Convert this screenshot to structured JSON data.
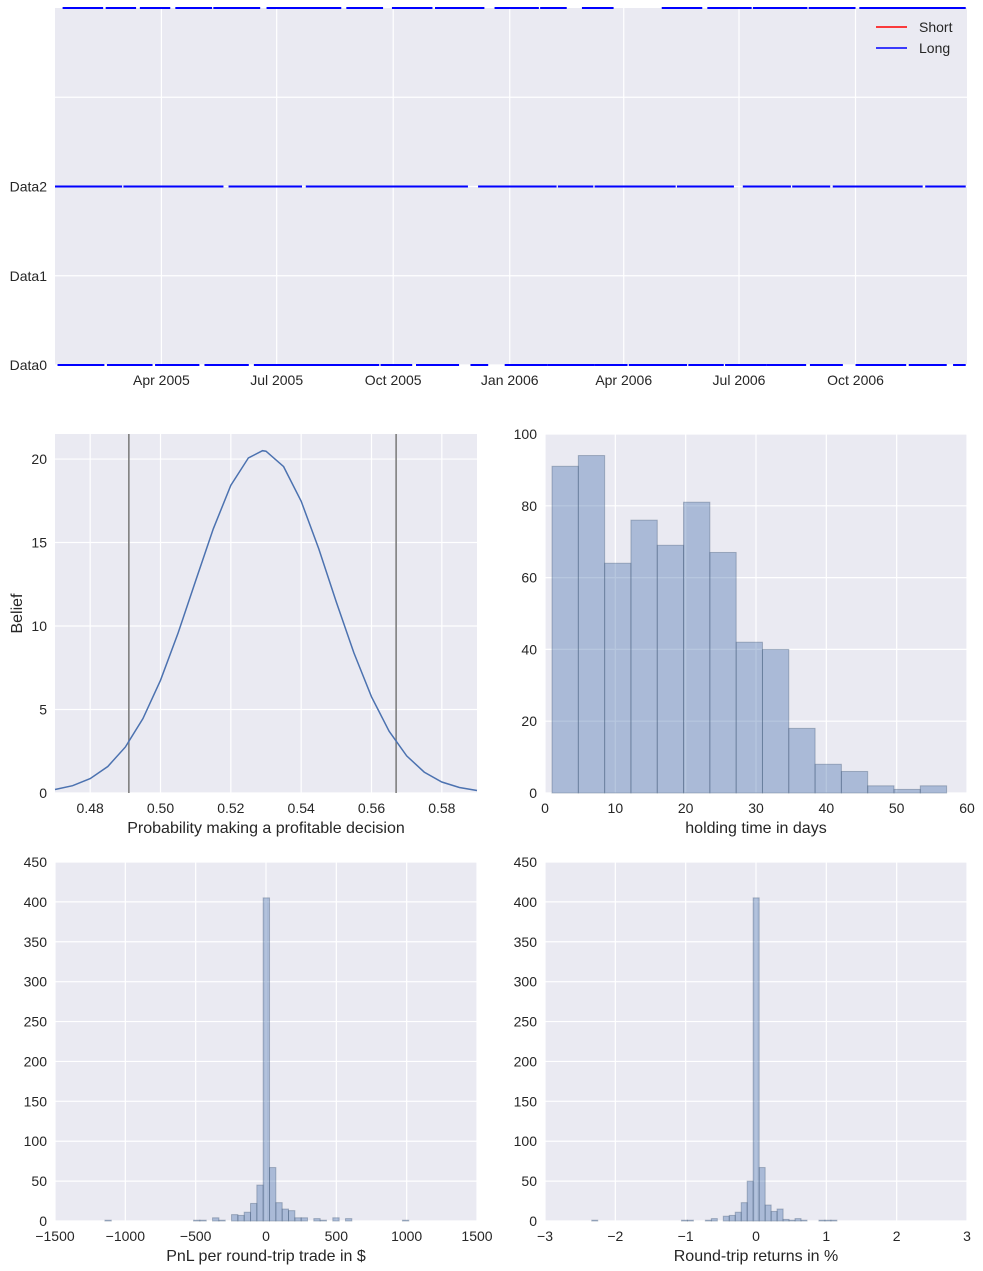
{
  "style": {
    "axes_bg": "#EAEAF2",
    "grid": "#FFFFFF",
    "curve": "#4C72B0",
    "hist_fill": "#4C72B0",
    "vline": "#7F7F7F"
  },
  "chart_data": [
    {
      "type": "timeline",
      "xlim": [
        "2005-01-07",
        "2006-12-28"
      ],
      "ylim": [
        0,
        4
      ],
      "grid": true,
      "xticks": [
        {
          "value": "2005-04-01",
          "label": "Apr 2005"
        },
        {
          "value": "2005-07-01",
          "label": "Jul 2005"
        },
        {
          "value": "2005-10-01",
          "label": "Oct 2005"
        },
        {
          "value": "2006-01-01",
          "label": "Jan 2006"
        },
        {
          "value": "2006-04-01",
          "label": "Apr 2006"
        },
        {
          "value": "2006-07-01",
          "label": "Jul 2006"
        },
        {
          "value": "2006-10-01",
          "label": "Oct 2006"
        }
      ],
      "yticks": [
        {
          "value": 0,
          "label": "Data0"
        },
        {
          "value": 1,
          "label": "Data1"
        },
        {
          "value": 2,
          "label": "Data2"
        },
        {
          "value": 3,
          "label": ""
        }
      ],
      "legend": {
        "placement": "top-right",
        "entries": [
          {
            "label": "Short",
            "color": "#FF0000"
          },
          {
            "label": "Long",
            "color": "#0000FF"
          }
        ]
      },
      "series": [
        {
          "name": "Short",
          "color": "#FF0000",
          "rows": []
        },
        {
          "name": "Long",
          "color": "#0000FF",
          "rows": [
            {
              "level": 0,
              "segments": [
                [
                  "2005-01-09",
                  "2005-02-15"
                ],
                [
                  "2005-02-17",
                  "2005-03-25"
                ],
                [
                  "2005-03-27",
                  "2005-05-01"
                ],
                [
                  "2005-05-05",
                  "2005-06-09"
                ],
                [
                  "2005-06-13",
                  "2005-09-20"
                ],
                [
                  "2005-09-21",
                  "2005-10-16"
                ],
                [
                  "2005-10-19",
                  "2005-11-22"
                ],
                [
                  "2005-12-01",
                  "2005-12-15"
                ],
                [
                  "2005-12-28",
                  "2006-01-31"
                ],
                [
                  "2006-01-31",
                  "2006-03-09"
                ],
                [
                  "2006-03-09",
                  "2006-04-04"
                ],
                [
                  "2006-04-05",
                  "2006-05-21"
                ],
                [
                  "2006-05-22",
                  "2006-06-19"
                ],
                [
                  "2006-06-20",
                  "2006-07-23"
                ],
                [
                  "2006-07-23",
                  "2006-08-23"
                ],
                [
                  "2006-08-26",
                  "2006-09-21"
                ],
                [
                  "2006-10-01",
                  "2006-11-10"
                ],
                [
                  "2006-11-12",
                  "2006-12-12"
                ],
                [
                  "2006-12-17",
                  "2006-12-27"
                ]
              ]
            },
            {
              "level": 2,
              "segments": [
                [
                  "2005-01-07",
                  "2005-03-01"
                ],
                [
                  "2005-03-02",
                  "2005-05-20"
                ],
                [
                  "2005-05-24",
                  "2005-07-21"
                ],
                [
                  "2005-07-24",
                  "2005-11-29"
                ],
                [
                  "2005-12-07",
                  "2006-02-07"
                ],
                [
                  "2006-02-08",
                  "2006-03-08"
                ],
                [
                  "2006-03-09",
                  "2006-05-12"
                ],
                [
                  "2006-05-13",
                  "2006-06-27"
                ],
                [
                  "2006-07-04",
                  "2006-08-11"
                ],
                [
                  "2006-08-12",
                  "2006-09-11"
                ],
                [
                  "2006-09-13",
                  "2006-11-23"
                ],
                [
                  "2006-11-25",
                  "2006-12-27"
                ]
              ]
            },
            {
              "level": 4,
              "segments": [
                [
                  "2005-01-13",
                  "2005-02-14"
                ],
                [
                  "2005-02-16",
                  "2005-03-12"
                ],
                [
                  "2005-03-15",
                  "2005-04-08"
                ],
                [
                  "2005-04-12",
                  "2005-05-11"
                ],
                [
                  "2005-05-12",
                  "2005-06-18"
                ],
                [
                  "2005-06-23",
                  "2005-08-21"
                ],
                [
                  "2005-08-25",
                  "2005-09-23"
                ],
                [
                  "2005-09-30",
                  "2005-11-01"
                ],
                [
                  "2005-11-03",
                  "2005-12-12"
                ],
                [
                  "2005-12-20",
                  "2006-01-24"
                ],
                [
                  "2006-01-25",
                  "2006-02-15"
                ],
                [
                  "2006-02-27",
                  "2006-03-24"
                ],
                [
                  "2006-05-01",
                  "2006-06-02"
                ],
                [
                  "2006-06-06",
                  "2006-07-11"
                ],
                [
                  "2006-07-12",
                  "2006-08-24"
                ],
                [
                  "2006-08-25",
                  "2006-10-01"
                ],
                [
                  "2006-10-04",
                  "2006-12-27"
                ]
              ]
            }
          ]
        }
      ]
    },
    {
      "type": "line",
      "xlabel": "Probability making a profitable decision",
      "ylabel": "Belief",
      "xlim": [
        0.47,
        0.59
      ],
      "ylim": [
        0,
        21.5
      ],
      "grid": true,
      "xticks": [
        {
          "value": 0.48,
          "label": "0.48"
        },
        {
          "value": 0.5,
          "label": "0.50"
        },
        {
          "value": 0.52,
          "label": "0.52"
        },
        {
          "value": 0.54,
          "label": "0.54"
        },
        {
          "value": 0.56,
          "label": "0.56"
        },
        {
          "value": 0.58,
          "label": "0.58"
        }
      ],
      "yticks": [
        {
          "value": 0,
          "label": "0"
        },
        {
          "value": 5,
          "label": "5"
        },
        {
          "value": 10,
          "label": "10"
        },
        {
          "value": 15,
          "label": "15"
        },
        {
          "value": 20,
          "label": "20"
        }
      ],
      "vlines": [
        0.491,
        0.567
      ],
      "x": [
        0.47,
        0.475,
        0.48,
        0.485,
        0.49,
        0.495,
        0.5,
        0.505,
        0.51,
        0.515,
        0.52,
        0.525,
        0.529,
        0.53,
        0.535,
        0.54,
        0.545,
        0.55,
        0.555,
        0.56,
        0.565,
        0.57,
        0.575,
        0.58,
        0.585,
        0.59
      ],
      "y": [
        0.21,
        0.44,
        0.86,
        1.59,
        2.75,
        4.45,
        6.75,
        9.58,
        12.72,
        15.82,
        18.42,
        20.07,
        20.5,
        20.47,
        19.55,
        17.47,
        14.62,
        11.44,
        8.39,
        5.76,
        3.7,
        2.22,
        1.25,
        0.66,
        0.33,
        0.15
      ]
    },
    {
      "type": "bar",
      "xlabel": "holding time in days",
      "xlim": [
        0,
        60
      ],
      "ylim": [
        0,
        100
      ],
      "grid": true,
      "xticks": [
        {
          "value": 0,
          "label": "0"
        },
        {
          "value": 10,
          "label": "10"
        },
        {
          "value": 20,
          "label": "20"
        },
        {
          "value": 30,
          "label": "30"
        },
        {
          "value": 40,
          "label": "40"
        },
        {
          "value": 50,
          "label": "50"
        },
        {
          "value": 60,
          "label": "60"
        }
      ],
      "yticks": [
        {
          "value": 0,
          "label": "0"
        },
        {
          "value": 20,
          "label": "20"
        },
        {
          "value": 40,
          "label": "40"
        },
        {
          "value": 60,
          "label": "60"
        },
        {
          "value": 80,
          "label": "80"
        },
        {
          "value": 100,
          "label": "100"
        }
      ],
      "bin_width": 3.74,
      "bins": [
        {
          "left": 1.0,
          "count": 91
        },
        {
          "left": 4.74,
          "count": 94
        },
        {
          "left": 8.48,
          "count": 64
        },
        {
          "left": 12.22,
          "count": 76
        },
        {
          "left": 15.96,
          "count": 69
        },
        {
          "left": 19.7,
          "count": 81
        },
        {
          "left": 23.44,
          "count": 67
        },
        {
          "left": 27.18,
          "count": 42
        },
        {
          "left": 30.92,
          "count": 40
        },
        {
          "left": 34.66,
          "count": 18
        },
        {
          "left": 38.4,
          "count": 8
        },
        {
          "left": 42.14,
          "count": 6
        },
        {
          "left": 45.88,
          "count": 2
        },
        {
          "left": 49.62,
          "count": 1
        },
        {
          "left": 53.36,
          "count": 2
        }
      ]
    },
    {
      "type": "bar",
      "xlabel": "PnL per round-trip trade in $",
      "xlim": [
        -1500,
        1500
      ],
      "ylim": [
        0,
        450
      ],
      "grid": true,
      "xticks": [
        {
          "value": -1500,
          "label": "−1500"
        },
        {
          "value": -1000,
          "label": "−1000"
        },
        {
          "value": -500,
          "label": "−500"
        },
        {
          "value": 0,
          "label": "0"
        },
        {
          "value": 500,
          "label": "500"
        },
        {
          "value": 1000,
          "label": "1000"
        },
        {
          "value": 1500,
          "label": "1500"
        }
      ],
      "yticks": [
        {
          "value": 0,
          "label": "0"
        },
        {
          "value": 50,
          "label": "50"
        },
        {
          "value": 100,
          "label": "100"
        },
        {
          "value": 150,
          "label": "150"
        },
        {
          "value": 200,
          "label": "200"
        },
        {
          "value": 250,
          "label": "250"
        },
        {
          "value": 300,
          "label": "300"
        },
        {
          "value": 350,
          "label": "350"
        },
        {
          "value": 400,
          "label": "400"
        },
        {
          "value": 450,
          "label": "450"
        }
      ],
      "bin_width": 45,
      "bins": [
        {
          "left": -1145,
          "count": 1
        },
        {
          "left": -515,
          "count": 1
        },
        {
          "left": -470,
          "count": 1
        },
        {
          "left": -380,
          "count": 4
        },
        {
          "left": -335,
          "count": 1
        },
        {
          "left": -245,
          "count": 8
        },
        {
          "left": -200,
          "count": 7
        },
        {
          "left": -155,
          "count": 11
        },
        {
          "left": -110,
          "count": 22
        },
        {
          "left": -65,
          "count": 45
        },
        {
          "left": -20,
          "count": 405
        },
        {
          "left": 25,
          "count": 67
        },
        {
          "left": 70,
          "count": 23
        },
        {
          "left": 115,
          "count": 15
        },
        {
          "left": 160,
          "count": 13
        },
        {
          "left": 205,
          "count": 4
        },
        {
          "left": 250,
          "count": 4
        },
        {
          "left": 340,
          "count": 3
        },
        {
          "left": 385,
          "count": 1
        },
        {
          "left": 475,
          "count": 4
        },
        {
          "left": 565,
          "count": 3
        },
        {
          "left": 970,
          "count": 1
        }
      ]
    },
    {
      "type": "bar",
      "xlabel": "Round-trip returns in %",
      "xlim": [
        -3,
        3
      ],
      "ylim": [
        0,
        450
      ],
      "grid": true,
      "xticks": [
        {
          "value": -3,
          "label": "−3"
        },
        {
          "value": -2,
          "label": "−2"
        },
        {
          "value": -1,
          "label": "−1"
        },
        {
          "value": 0,
          "label": "0"
        },
        {
          "value": 1,
          "label": "1"
        },
        {
          "value": 2,
          "label": "2"
        },
        {
          "value": 3,
          "label": "3"
        }
      ],
      "yticks": [
        {
          "value": 0,
          "label": "0"
        },
        {
          "value": 50,
          "label": "50"
        },
        {
          "value": 100,
          "label": "100"
        },
        {
          "value": 150,
          "label": "150"
        },
        {
          "value": 200,
          "label": "200"
        },
        {
          "value": 250,
          "label": "250"
        },
        {
          "value": 300,
          "label": "300"
        },
        {
          "value": 350,
          "label": "350"
        },
        {
          "value": 400,
          "label": "400"
        },
        {
          "value": 450,
          "label": "450"
        }
      ],
      "bin_width": 0.085,
      "bins": [
        {
          "left": -2.335,
          "count": 1
        },
        {
          "left": -1.06,
          "count": 1
        },
        {
          "left": -0.975,
          "count": 1
        },
        {
          "left": -0.72,
          "count": 1
        },
        {
          "left": -0.635,
          "count": 3
        },
        {
          "left": -0.465,
          "count": 6
        },
        {
          "left": -0.38,
          "count": 7
        },
        {
          "left": -0.295,
          "count": 11
        },
        {
          "left": -0.21,
          "count": 23
        },
        {
          "left": -0.125,
          "count": 50
        },
        {
          "left": -0.04,
          "count": 405
        },
        {
          "left": 0.045,
          "count": 67
        },
        {
          "left": 0.13,
          "count": 20
        },
        {
          "left": 0.215,
          "count": 12
        },
        {
          "left": 0.3,
          "count": 15
        },
        {
          "left": 0.385,
          "count": 2
        },
        {
          "left": 0.47,
          "count": 1
        },
        {
          "left": 0.555,
          "count": 3
        },
        {
          "left": 0.64,
          "count": 1
        },
        {
          "left": 0.895,
          "count": 1
        },
        {
          "left": 0.98,
          "count": 1
        },
        {
          "left": 1.065,
          "count": 1
        }
      ]
    }
  ]
}
